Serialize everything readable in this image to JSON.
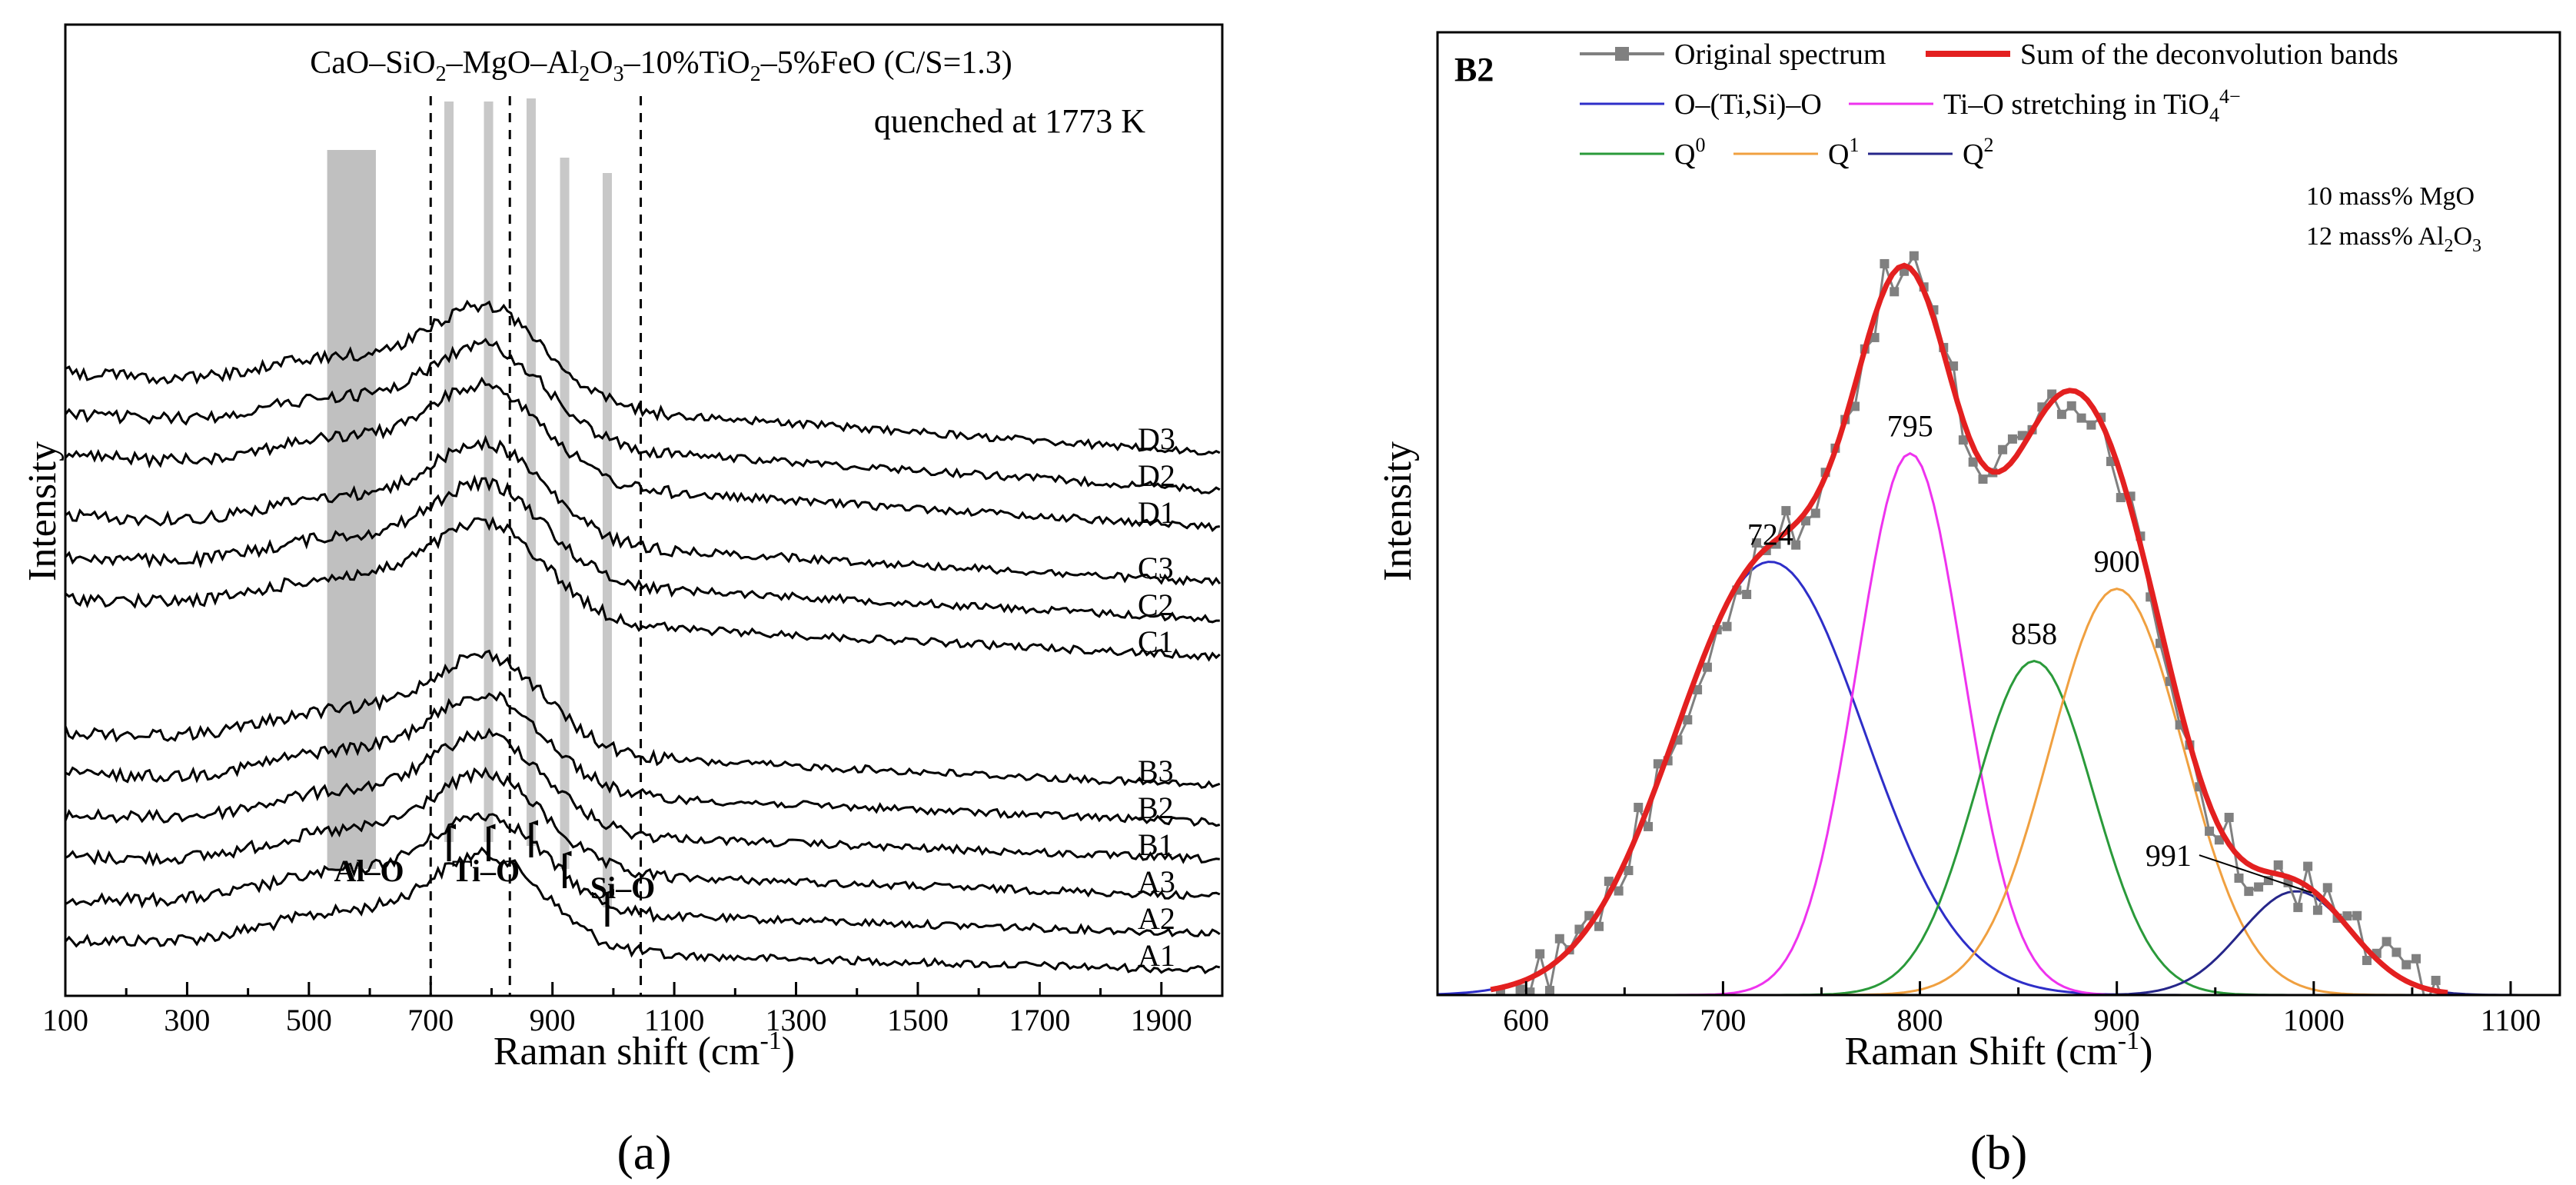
{
  "panel_a": {
    "label": "(a)",
    "title_parts": [
      "CaO–SiO",
      "2",
      "–MgO–Al",
      "2",
      "O",
      "3",
      "–10%TiO",
      "2",
      "–5%FeO (C/S=1.3)"
    ],
    "subtitle": "quenched at 1773 K",
    "xlabel_main": "Raman shift (cm",
    "xlabel_sup": "-1",
    "xlabel_end": ")",
    "ylabel": "Intensity",
    "region_labels": {
      "al": "Al–O",
      "ti": "Ti–O",
      "si": "Si–O"
    }
  },
  "panel_b": {
    "label": "(b)",
    "tag": "B2",
    "xlabel_main": "Raman Shift (cm",
    "xlabel_sup": "-1",
    "xlabel_end": ")",
    "ylabel": "Intensity",
    "legend": {
      "orig": "Original spectrum",
      "sum": "Sum of the deconvolution bands",
      "oti": "O–(Ti,Si)–O",
      "tio_main": "Ti–O stretching in TiO",
      "tio_sub": "4",
      "tio_sup": "4−",
      "q": "Q",
      "q0": "0",
      "q1": "1",
      "q2": "2"
    },
    "composition": {
      "mgo": "10 mass% MgO",
      "al_pre": "12 mass% Al",
      "al_sub1": "2",
      "al_mid": "O",
      "al_sub2": "3"
    }
  },
  "chart_data": [
    {
      "type": "line",
      "title": "CaO–SiO2–MgO–Al2O3–10%TiO2–5%FeO (C/S=1.3)",
      "subtitle": "quenched at 1773 K",
      "xlabel": "Raman shift (cm-1)",
      "ylabel": "Intensity",
      "xlim": [
        100,
        2000
      ],
      "xticks": [
        100,
        300,
        500,
        700,
        900,
        1100,
        1300,
        1500,
        1700,
        1900
      ],
      "series_names": [
        "A1",
        "A2",
        "A3",
        "B1",
        "B2",
        "B3",
        "C1",
        "C2",
        "C3",
        "D1",
        "D2",
        "D3"
      ],
      "offsets": [
        0,
        1,
        2,
        3,
        4,
        5,
        8.5,
        9.5,
        10.5,
        12,
        13,
        14
      ],
      "dashed_lines": [
        700,
        830,
        1045
      ],
      "shaded_band": [
        530,
        610
      ],
      "gray_lines": [
        730,
        795,
        865,
        920,
        990
      ],
      "arrows": [
        730,
        795,
        865,
        920,
        990
      ],
      "regions": [
        "Al–O",
        "Ti–O",
        "Si–O"
      ]
    },
    {
      "type": "line",
      "title": "B2",
      "xlabel": "Raman Shift (cm-1)",
      "ylabel": "Intensity",
      "xlim": [
        555,
        1125
      ],
      "ylim": [
        0,
        1.0
      ],
      "xticks": [
        600,
        700,
        800,
        900,
        1000,
        1100
      ],
      "bands": [
        {
          "name": "O–(Ti,Si)–O",
          "center": 724,
          "height": 0.48,
          "width": 48,
          "color": "#2e2ec8"
        },
        {
          "name": "Ti–O stretching in TiO4 4−",
          "center": 795,
          "height": 0.6,
          "width": 27,
          "color": "#ee33ee"
        },
        {
          "name": "Q0",
          "center": 858,
          "height": 0.37,
          "width": 30,
          "color": "#2a9a3a"
        },
        {
          "name": "Q1",
          "center": 900,
          "height": 0.45,
          "width": 34,
          "color": "#f0a040"
        },
        {
          "name": "Q2",
          "center": 991,
          "height": 0.115,
          "width": 28,
          "color": "#26268a"
        }
      ],
      "peak_labels": [
        "724",
        "795",
        "858",
        "900",
        "991"
      ],
      "sum_color": "#e32020",
      "orig_color": "#808080",
      "orig_xrange": [
        582,
        1068
      ],
      "orig_step": 5
    }
  ]
}
